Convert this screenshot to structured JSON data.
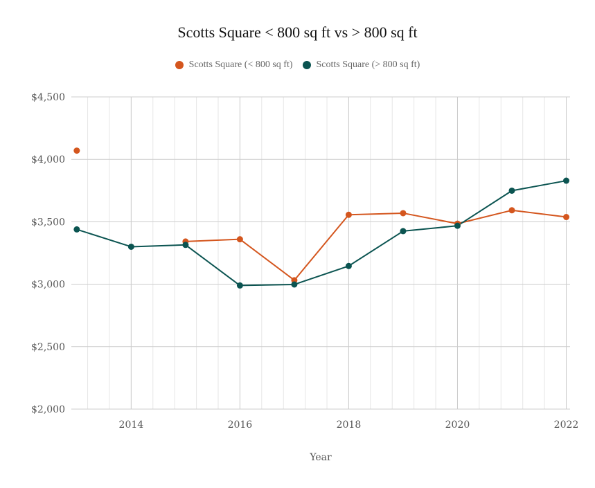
{
  "chart_data": {
    "type": "line",
    "title": "Scotts Square < 800 sq ft vs > 800 sq ft",
    "xlabel": "Year",
    "ylabel": "",
    "x": [
      2013,
      2014,
      2015,
      2016,
      2017,
      2018,
      2019,
      2020,
      2021,
      2022
    ],
    "xlim": [
      2012.9,
      2022.07
    ],
    "ylim": [
      2000,
      4500
    ],
    "y_ticks": [
      2000,
      2500,
      3000,
      3500,
      4000,
      4500
    ],
    "y_tick_labels": [
      "$2,000",
      "$2,500",
      "$3,000",
      "$3,500",
      "$4,000",
      "$4,500"
    ],
    "x_ticks": [
      2014,
      2016,
      2018,
      2020,
      2022
    ],
    "x_tick_labels": [
      "2014",
      "2016",
      "2018",
      "2020",
      "2022"
    ],
    "grid": true,
    "legend_position": "top-center",
    "series": [
      {
        "name": "Scotts Square (< 800 sq ft)",
        "color": "#D4561E",
        "values": [
          4070,
          null,
          3342,
          3360,
          3032,
          3556,
          3569,
          3485,
          3592,
          3538
        ]
      },
      {
        "name": "Scotts Square (> 800 sq ft)",
        "color": "#0B5451",
        "values": [
          3439,
          3300,
          3315,
          2990,
          2998,
          3146,
          3425,
          3468,
          3749,
          3829
        ]
      }
    ]
  }
}
